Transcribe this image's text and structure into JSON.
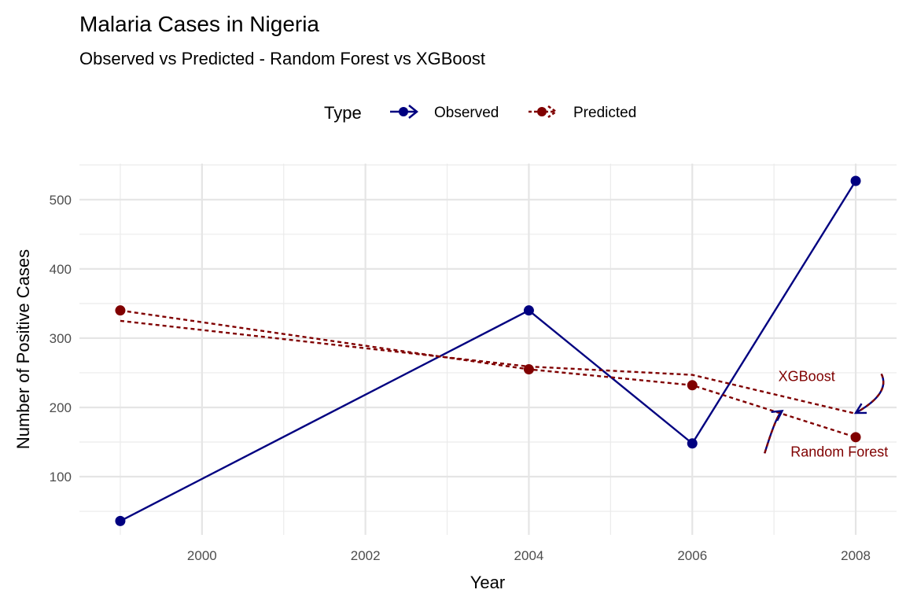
{
  "chart_data": {
    "type": "line",
    "title": "Malaria Cases in Nigeria",
    "subtitle": "Observed vs Predicted - Random Forest vs XGBoost",
    "xlabel": "Year",
    "ylabel": "Number of Positive Cases",
    "xlim": [
      1998.5,
      2008.5
    ],
    "ylim": [
      16,
      552
    ],
    "x_ticks": [
      2000,
      2002,
      2004,
      2006,
      2008
    ],
    "y_ticks": [
      100,
      200,
      300,
      400,
      500
    ],
    "grid": true,
    "legend": {
      "title": "Type",
      "position": "top",
      "entries": [
        "Observed",
        "Predicted"
      ]
    },
    "colors": {
      "Observed": "#000080",
      "Predicted": "#800000"
    },
    "series": [
      {
        "name": "Observed",
        "type_group": "Observed",
        "x": [
          1999,
          2004,
          2006,
          2008
        ],
        "y": [
          36,
          340,
          148,
          527
        ],
        "points": true,
        "dash": "solid"
      },
      {
        "name": "Random Forest",
        "type_group": "Predicted",
        "x": [
          1999,
          2004,
          2006,
          2008
        ],
        "y": [
          340,
          255,
          232,
          157
        ],
        "points": true,
        "dash": "dashed"
      },
      {
        "name": "XGBoost",
        "type_group": "Predicted",
        "x": [
          1999,
          2004,
          2006,
          2008
        ],
        "y": [
          325,
          259,
          247,
          191
        ],
        "points": false,
        "dash": "dashed"
      }
    ],
    "annotations": [
      {
        "text": "XGBoost",
        "x": 2007.4,
        "y": 245,
        "arrow_to": [
          2008,
          192
        ]
      },
      {
        "text": "Random Forest",
        "x": 2007.8,
        "y": 136,
        "arrow_to": [
          2007.1,
          195
        ]
      }
    ]
  }
}
